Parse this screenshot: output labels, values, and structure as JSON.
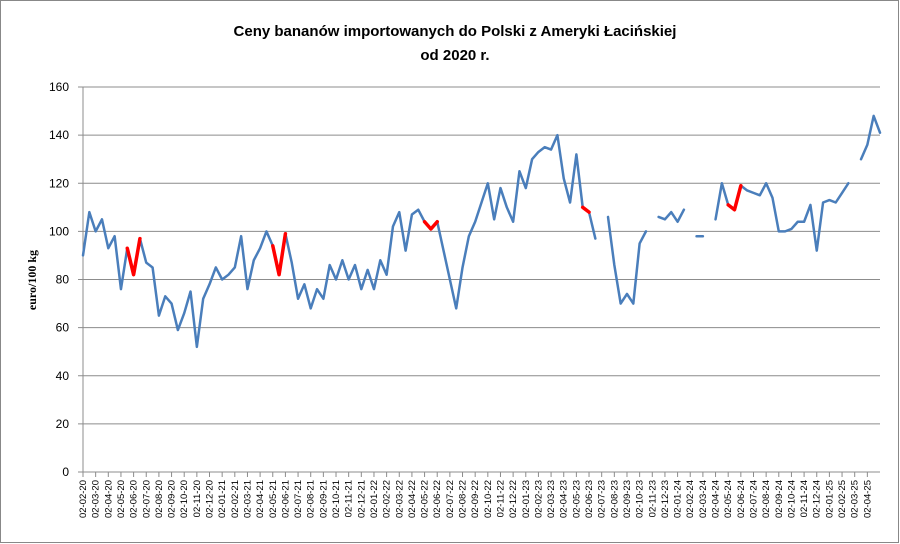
{
  "chart_data": {
    "type": "line",
    "title": [
      "Ceny bananów importowanych do Polski z Ameryki Łacińskiej",
      "od 2020 r."
    ],
    "y_label": "euro/100 kg",
    "categories": [
      "02-02-20",
      null,
      "02-03-20",
      null,
      "02-04-20",
      null,
      "02-05-20",
      null,
      "02-06-20",
      null,
      "02-07-20",
      null,
      "02-08-20",
      null,
      "02-09-20",
      null,
      "02-10-20",
      null,
      "02-11-20",
      null,
      "02-12-20",
      null,
      "02-01-21",
      null,
      "02-02-21",
      null,
      "02-03-21",
      null,
      "02-04-21",
      null,
      "02-05-21",
      null,
      "02-06-21",
      null,
      "02-07-21",
      null,
      "02-08-21",
      null,
      "02-09-21",
      null,
      "02-10-21",
      null,
      "02-11-21",
      null,
      "02-12-21",
      null,
      "02-01-22",
      null,
      "02-02-22",
      null,
      "02-03-22",
      null,
      "02-04-22",
      null,
      "02-05-22",
      null,
      "02-06-22",
      null,
      "02-07-22",
      null,
      "02-08-22",
      null,
      "02-09-22",
      null,
      "02-10-22",
      null,
      "02-11-22",
      null,
      "02-12-22",
      null,
      "02-01-23",
      null,
      "02-02-23",
      null,
      "02-03-23",
      null,
      "02-04-23",
      null,
      "02-05-23",
      null,
      "02-06-23",
      null,
      "02-07-23",
      null,
      "02-08-23",
      null,
      "02-09-23",
      null,
      "02-10-23",
      null,
      "02-11-23",
      null,
      "02-12-23",
      null,
      "02-01-24",
      null,
      "02-02-24",
      null,
      "02-03-24",
      null,
      "02-04-24",
      null,
      "02-05-24",
      null,
      "02-06-24",
      null,
      "02-07-24",
      null,
      "02-08-24",
      null,
      "02-09-24",
      null,
      "02-10-24",
      null,
      "02-11-24",
      null,
      "02-12-24",
      null,
      "02-01-25",
      null,
      "02-02-25",
      null,
      "02-03-25",
      null,
      "02-04-25",
      null,
      null
    ],
    "series": [
      {
        "color": "#4a7ebb",
        "width": 2.5,
        "values": [
          90,
          108,
          100,
          105,
          93,
          98,
          76,
          93,
          82,
          97,
          87,
          85,
          65,
          73,
          70,
          59,
          66,
          75,
          52,
          72,
          78,
          85,
          80,
          82,
          85,
          98,
          76,
          88,
          93,
          100,
          94,
          82,
          99,
          87,
          72,
          78,
          68,
          76,
          72,
          86,
          80,
          88,
          80,
          86,
          76,
          84,
          76,
          88,
          82,
          102,
          108,
          92,
          107,
          109,
          104,
          101,
          104,
          92,
          80,
          68,
          85,
          98,
          104,
          112,
          120,
          105,
          118,
          110,
          104,
          125,
          118,
          130,
          133,
          135,
          134,
          140,
          122,
          112,
          132,
          110,
          108,
          97,
          null,
          106,
          86,
          70,
          74,
          70,
          95,
          100,
          null,
          106,
          105,
          108,
          104,
          109,
          null,
          98,
          98,
          null,
          105,
          120,
          111,
          109,
          119,
          117,
          116,
          115,
          120,
          114,
          100,
          100,
          101,
          104,
          104,
          111,
          92,
          112,
          113,
          112,
          116,
          120,
          null,
          130,
          136,
          148,
          141
        ]
      },
      {
        "color": "#ff0000",
        "width": 3.5,
        "values": [
          null,
          null,
          null,
          null,
          null,
          null,
          null,
          93,
          82,
          97,
          null,
          null,
          null,
          null,
          null,
          null,
          null,
          null,
          null,
          null,
          null,
          null,
          null,
          null,
          null,
          null,
          null,
          null,
          null,
          null,
          94,
          82,
          99,
          null,
          null,
          null,
          null,
          null,
          null,
          null,
          null,
          null,
          null,
          null,
          null,
          null,
          null,
          null,
          null,
          null,
          null,
          null,
          null,
          null,
          104,
          101,
          104,
          null,
          null,
          null,
          null,
          null,
          null,
          null,
          null,
          null,
          null,
          null,
          null,
          null,
          null,
          null,
          null,
          null,
          null,
          null,
          null,
          null,
          null,
          110,
          108,
          null,
          null,
          null,
          null,
          null,
          null,
          null,
          null,
          null,
          null,
          null,
          null,
          null,
          null,
          null,
          null,
          null,
          null,
          null,
          null,
          null,
          111,
          109,
          119,
          null,
          null,
          null,
          null,
          null,
          null,
          null,
          null,
          null,
          null,
          null,
          null,
          null,
          null,
          null,
          null,
          null,
          null,
          null,
          null,
          null,
          null
        ]
      }
    ],
    "ylim": [
      0,
      160
    ],
    "yticks": [
      0,
      20,
      40,
      60,
      80,
      100,
      120,
      140,
      160
    ],
    "grid": true
  }
}
